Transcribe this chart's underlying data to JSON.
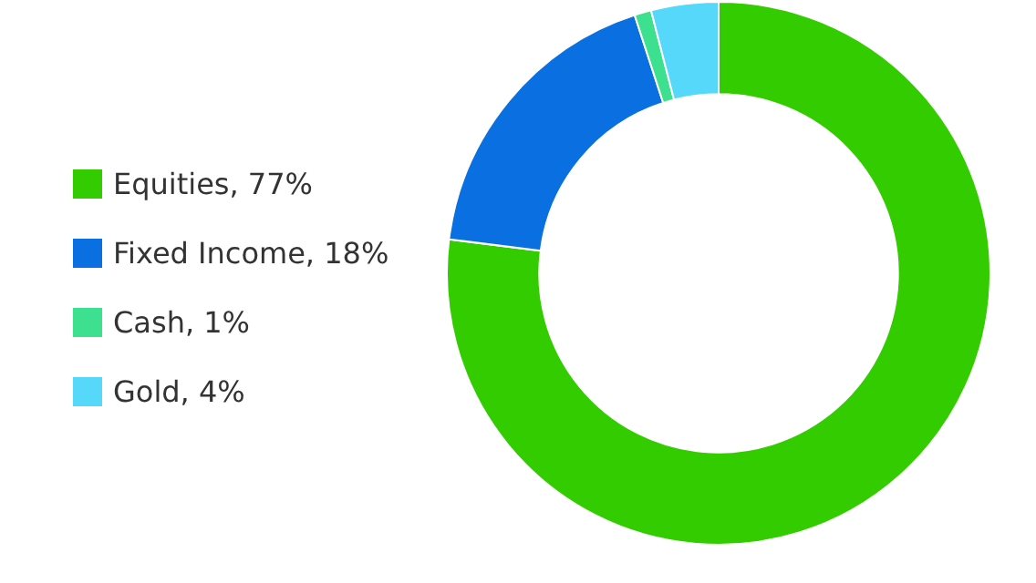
{
  "chart_data": {
    "type": "donut",
    "categories": [
      "Equities, 77%",
      "Fixed Income, 18%",
      "Cash, 1%",
      "Gold, 4%"
    ],
    "values": [
      77,
      18,
      1,
      4
    ],
    "colors": [
      "#33cc00",
      "#0a6fe0",
      "#3de08e",
      "#55d8fa"
    ],
    "legend": "left"
  }
}
